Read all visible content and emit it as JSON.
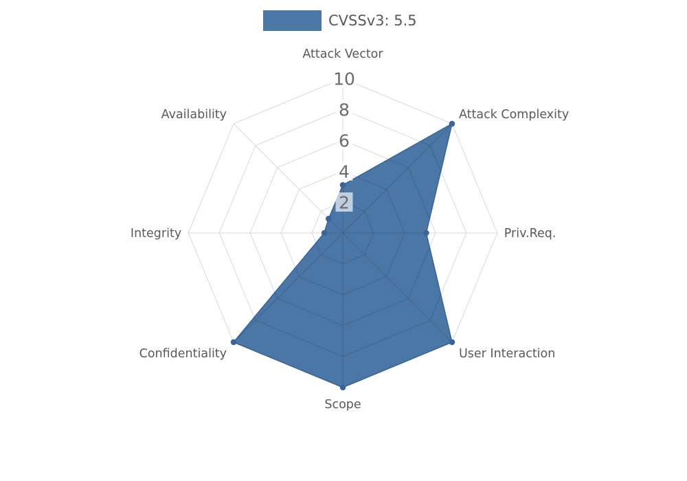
{
  "legend": {
    "label": "CVSSv3: 5.5",
    "swatch_color": "#4b77a7"
  },
  "chart_data": {
    "type": "radar",
    "title": "CVSSv3: 5.5",
    "categories": [
      "Attack Vector",
      "Attack Complexity",
      "Priv.Req.",
      "User Interaction",
      "Scope",
      "Confidentiality",
      "Integrity",
      "Availability"
    ],
    "series": [
      {
        "name": "CVSSv3: 5.5",
        "values": [
          3.1,
          10,
          5.4,
          10,
          10,
          10,
          1.2,
          1.3
        ]
      }
    ],
    "rlim": [
      0,
      10
    ],
    "rticks": [
      2,
      4,
      6,
      8,
      10
    ],
    "grid": true,
    "grid_shape": "polygon",
    "legend_position": "top-center",
    "colors": {
      "fill": "#4b77a7",
      "line": "#3b6598",
      "marker": "#3b6598",
      "grid": "#d9d9d9",
      "grid_inside": "#45658d",
      "category_text": "#595959",
      "tick_text": "#6b6b6b",
      "tick_box": "rgba(255,255,255,0.65)"
    }
  }
}
